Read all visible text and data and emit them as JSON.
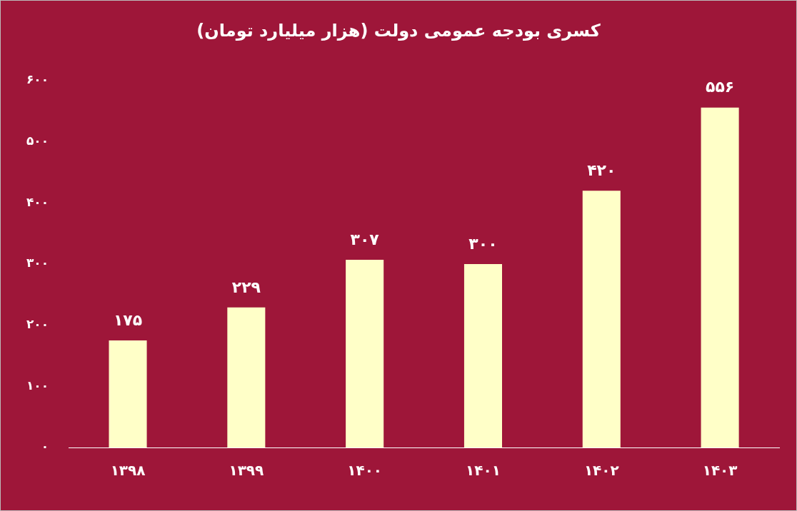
{
  "chart_data": {
    "type": "bar",
    "title": "کسری بودجه عمومی دولت (هزار میلیارد تومان)",
    "categories": [
      "۱۳۹۸",
      "۱۳۹۹",
      "۱۴۰۰",
      "۱۴۰۱",
      "۱۴۰۲",
      "۱۴۰۳"
    ],
    "values": [
      175,
      229,
      307,
      300,
      420,
      556
    ],
    "value_labels": [
      "۱۷۵",
      "۲۲۹",
      "۳۰۷",
      "۳۰۰",
      "۴۲۰",
      "۵۵۶"
    ],
    "color": "#ffffc8",
    "ylim": [
      0,
      600
    ],
    "yticks": [
      {
        "value": 0,
        "label": "۰"
      },
      {
        "value": 100,
        "label": "۱۰۰"
      },
      {
        "value": 200,
        "label": "۲۰۰"
      },
      {
        "value": 300,
        "label": "۳۰۰"
      },
      {
        "value": 400,
        "label": "۴۰۰"
      },
      {
        "value": 500,
        "label": "۵۰۰"
      },
      {
        "value": 600,
        "label": "۶۰۰"
      }
    ],
    "grid": false,
    "legend": false
  }
}
